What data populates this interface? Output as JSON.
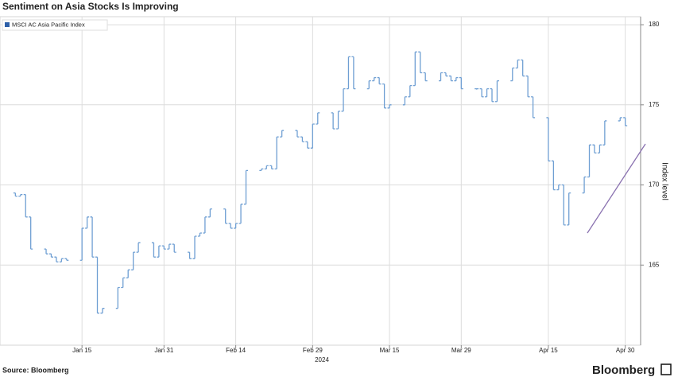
{
  "chart_data": {
    "type": "ohlc",
    "title": "Sentiment on Asia Stocks Is Improving",
    "series_name": "MSCI AC Asia Pacific Index",
    "color": "#6f9fd3",
    "ylabel": "Index level",
    "x_year": "2024",
    "source": "Source: Bloomberg",
    "brand": "Bloomberg",
    "legend": "upper left",
    "grid": true,
    "x": [
      "2024-01-02",
      "2024-01-03",
      "2024-01-04",
      "2024-01-05",
      "2024-01-08",
      "2024-01-09",
      "2024-01-10",
      "2024-01-11",
      "2024-01-12",
      "2024-01-15",
      "2024-01-16",
      "2024-01-17",
      "2024-01-18",
      "2024-01-19",
      "2024-01-22",
      "2024-01-23",
      "2024-01-24",
      "2024-01-25",
      "2024-01-26",
      "2024-01-29",
      "2024-01-30",
      "2024-01-31",
      "2024-02-01",
      "2024-02-02",
      "2024-02-05",
      "2024-02-06",
      "2024-02-07",
      "2024-02-08",
      "2024-02-09",
      "2024-02-12",
      "2024-02-13",
      "2024-02-14",
      "2024-02-15",
      "2024-02-16",
      "2024-02-19",
      "2024-02-20",
      "2024-02-21",
      "2024-02-22",
      "2024-02-23",
      "2024-02-26",
      "2024-02-27",
      "2024-02-28",
      "2024-02-29",
      "2024-03-01",
      "2024-03-04",
      "2024-03-05",
      "2024-03-06",
      "2024-03-07",
      "2024-03-08",
      "2024-03-11",
      "2024-03-12",
      "2024-03-13",
      "2024-03-14",
      "2024-03-15",
      "2024-03-18",
      "2024-03-19",
      "2024-03-20",
      "2024-03-21",
      "2024-03-22",
      "2024-03-25",
      "2024-03-26",
      "2024-03-27",
      "2024-03-28",
      "2024-03-29",
      "2024-04-01",
      "2024-04-02",
      "2024-04-03",
      "2024-04-04",
      "2024-04-05",
      "2024-04-08",
      "2024-04-09",
      "2024-04-10",
      "2024-04-11",
      "2024-04-12",
      "2024-04-15",
      "2024-04-16",
      "2024-04-17",
      "2024-04-18",
      "2024-04-19",
      "2024-04-22",
      "2024-04-23",
      "2024-04-24",
      "2024-04-25",
      "2024-04-26",
      "2024-04-29",
      "2024-04-30"
    ],
    "open": [
      169.5,
      169.3,
      169.4,
      168.0,
      166.0,
      165.7,
      165.5,
      165.2,
      165.4,
      165.3,
      167.3,
      168.0,
      165.5,
      162.0,
      162.3,
      163.6,
      164.2,
      164.7,
      165.8,
      166.4,
      165.5,
      166.2,
      166.0,
      166.3,
      165.8,
      165.4,
      166.8,
      167.0,
      168.0,
      168.5,
      167.6,
      167.3,
      167.6,
      168.8,
      170.9,
      171.0,
      171.2,
      171.0,
      173.0,
      173.4,
      173.0,
      172.7,
      172.3,
      173.8,
      174.5,
      173.5,
      174.6,
      176.0,
      178.0,
      176.0,
      176.5,
      176.7,
      176.3,
      174.8,
      175.0,
      175.5,
      176.2,
      178.3,
      177.0,
      176.5,
      177.0,
      176.8,
      176.5,
      176.7,
      176.0,
      176.0,
      175.5,
      176.0,
      175.2,
      176.5,
      177.3,
      177.8,
      176.8,
      175.5,
      174.2,
      171.5,
      169.7,
      170.0,
      167.5,
      169.5,
      170.5,
      172.5,
      172.0,
      172.5,
      174.0,
      174.2
    ],
    "close": [
      169.3,
      169.4,
      168.0,
      166.0,
      165.7,
      165.5,
      165.2,
      165.4,
      165.3,
      167.3,
      168.0,
      165.5,
      162.0,
      162.3,
      163.6,
      164.2,
      164.7,
      165.8,
      166.4,
      165.5,
      166.2,
      166.0,
      166.3,
      165.8,
      165.4,
      166.8,
      167.0,
      168.0,
      168.5,
      167.6,
      167.3,
      167.6,
      168.8,
      170.9,
      171.0,
      171.2,
      171.0,
      173.0,
      173.4,
      173.0,
      172.7,
      172.3,
      173.8,
      174.5,
      173.5,
      174.6,
      176.0,
      178.0,
      176.0,
      176.5,
      176.7,
      176.3,
      174.8,
      175.0,
      175.5,
      176.2,
      178.3,
      177.0,
      176.5,
      177.0,
      176.8,
      176.5,
      176.7,
      176.0,
      176.0,
      175.5,
      176.0,
      175.2,
      176.5,
      177.3,
      177.8,
      176.8,
      175.5,
      174.2,
      171.5,
      169.7,
      170.0,
      167.5,
      169.5,
      170.5,
      172.5,
      172.0,
      172.5,
      174.0,
      174.2,
      173.7
    ],
    "xlim": [
      "2023-12-30",
      "2024-05-03"
    ],
    "xticks": [
      {
        "value": "2024-01-15",
        "label": "Jan 15"
      },
      {
        "value": "2024-01-31",
        "label": "Jan 31"
      },
      {
        "value": "2024-02-14",
        "label": "Feb 14"
      },
      {
        "value": "2024-02-29",
        "label": "Feb 29"
      },
      {
        "value": "2024-03-15",
        "label": "Mar 15"
      },
      {
        "value": "2024-03-29",
        "label": "Mar 29"
      },
      {
        "value": "2024-04-15",
        "label": "Apr 15"
      },
      {
        "value": "2024-04-30",
        "label": "Apr 30"
      }
    ],
    "ylim": [
      160,
      180.5
    ],
    "yticks": [
      165,
      170,
      175,
      180
    ]
  }
}
